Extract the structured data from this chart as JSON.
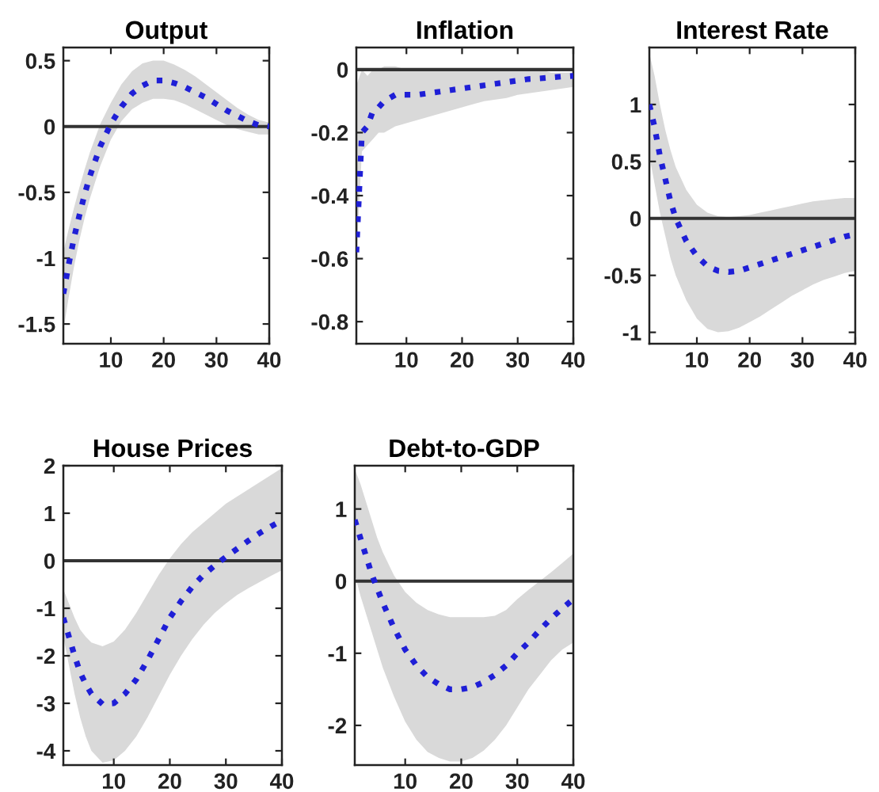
{
  "chart_data": [
    {
      "type": "line",
      "title": "Output",
      "x": [
        1,
        2,
        3,
        4,
        5,
        6,
        8,
        10,
        12,
        14,
        16,
        18,
        20,
        22,
        24,
        26,
        28,
        30,
        32,
        34,
        36,
        38,
        40
      ],
      "line_style": "dotted",
      "grid": false,
      "xlim": [
        1,
        40
      ],
      "xticks": [
        10,
        20,
        30,
        40
      ],
      "ylim": [
        -1.65,
        0.6
      ],
      "yticks": [
        -1.5,
        -1,
        -0.5,
        0,
        0.5
      ],
      "ref_lines": [
        {
          "axis": "y",
          "value": 0,
          "color": "#333333"
        }
      ],
      "series": [
        {
          "color": "#1f1fd6",
          "values": [
            -1.27,
            -1.05,
            -0.85,
            -0.68,
            -0.52,
            -0.38,
            -0.15,
            0.02,
            0.15,
            0.25,
            0.31,
            0.35,
            0.35,
            0.33,
            0.3,
            0.26,
            0.22,
            0.17,
            0.12,
            0.08,
            0.04,
            0.01,
            0.0
          ],
          "lower": [
            -1.55,
            -1.3,
            -1.07,
            -0.87,
            -0.7,
            -0.55,
            -0.3,
            -0.1,
            0.04,
            0.13,
            0.18,
            0.21,
            0.21,
            0.2,
            0.17,
            0.13,
            0.09,
            0.05,
            0.01,
            -0.02,
            -0.04,
            -0.06,
            -0.06
          ],
          "upper": [
            -0.95,
            -0.78,
            -0.62,
            -0.47,
            -0.33,
            -0.2,
            0.02,
            0.18,
            0.32,
            0.42,
            0.48,
            0.5,
            0.5,
            0.47,
            0.43,
            0.38,
            0.32,
            0.26,
            0.2,
            0.14,
            0.09,
            0.05,
            0.03
          ]
        }
      ]
    },
    {
      "type": "line",
      "title": "Inflation",
      "x": [
        1,
        2,
        3,
        4,
        5,
        6,
        8,
        10,
        12,
        14,
        16,
        18,
        20,
        22,
        24,
        26,
        28,
        30,
        32,
        34,
        36,
        38,
        40
      ],
      "line_style": "dotted",
      "grid": false,
      "xlim": [
        1,
        40
      ],
      "xticks": [
        10,
        20,
        30,
        40
      ],
      "ylim": [
        -0.87,
        0.07
      ],
      "yticks": [
        -0.8,
        -0.6,
        -0.4,
        -0.2,
        0
      ],
      "ref_lines": [
        {
          "axis": "y",
          "value": 0,
          "color": "#333333"
        }
      ],
      "series": [
        {
          "color": "#1f1fd6",
          "values": [
            -0.58,
            -0.2,
            -0.18,
            -0.13,
            -0.12,
            -0.1,
            -0.08,
            -0.08,
            -0.08,
            -0.075,
            -0.07,
            -0.065,
            -0.06,
            -0.055,
            -0.05,
            -0.045,
            -0.04,
            -0.035,
            -0.03,
            -0.028,
            -0.025,
            -0.022,
            -0.02
          ],
          "lower": [
            -0.6,
            -0.26,
            -0.24,
            -0.22,
            -0.2,
            -0.2,
            -0.18,
            -0.17,
            -0.16,
            -0.15,
            -0.14,
            -0.13,
            -0.12,
            -0.11,
            -0.1,
            -0.095,
            -0.09,
            -0.08,
            -0.075,
            -0.07,
            -0.065,
            -0.06,
            -0.055
          ],
          "upper": [
            -0.05,
            0.0,
            -0.02,
            0.0,
            0.0,
            0.01,
            0.01,
            0.0,
            0.0,
            0.0,
            0.0,
            0.0,
            0.0,
            0.0,
            0.0,
            0.0,
            0.0,
            0.0,
            0.0,
            0.0,
            -0.01,
            -0.01,
            -0.01
          ]
        }
      ]
    },
    {
      "type": "line",
      "title": "Interest Rate",
      "x": [
        1,
        2,
        3,
        4,
        5,
        6,
        8,
        10,
        12,
        14,
        16,
        18,
        20,
        22,
        24,
        26,
        28,
        30,
        32,
        34,
        36,
        38,
        40
      ],
      "line_style": "dotted",
      "grid": false,
      "xlim": [
        1,
        40
      ],
      "xticks": [
        10,
        20,
        30,
        40
      ],
      "ylim": [
        -1.1,
        1.5
      ],
      "yticks": [
        -1,
        -0.5,
        0,
        0.5,
        1
      ],
      "ref_lines": [
        {
          "axis": "y",
          "value": 0,
          "color": "#333333"
        }
      ],
      "series": [
        {
          "color": "#1f1fd6",
          "values": [
            1.0,
            0.8,
            0.55,
            0.35,
            0.15,
            0.0,
            -0.2,
            -0.33,
            -0.42,
            -0.46,
            -0.47,
            -0.46,
            -0.43,
            -0.4,
            -0.37,
            -0.34,
            -0.31,
            -0.28,
            -0.25,
            -0.22,
            -0.19,
            -0.16,
            -0.14
          ],
          "lower": [
            0.55,
            0.3,
            0.05,
            -0.15,
            -0.35,
            -0.5,
            -0.72,
            -0.88,
            -0.97,
            -1.0,
            -0.99,
            -0.96,
            -0.91,
            -0.86,
            -0.8,
            -0.74,
            -0.68,
            -0.63,
            -0.58,
            -0.54,
            -0.51,
            -0.48,
            -0.46
          ],
          "upper": [
            1.45,
            1.25,
            1.0,
            0.78,
            0.6,
            0.45,
            0.25,
            0.12,
            0.05,
            0.02,
            0.01,
            0.02,
            0.03,
            0.05,
            0.07,
            0.09,
            0.11,
            0.13,
            0.15,
            0.16,
            0.17,
            0.18,
            0.18
          ]
        }
      ]
    },
    {
      "type": "line",
      "title": "House Prices",
      "x": [
        1,
        2,
        3,
        4,
        5,
        6,
        8,
        10,
        12,
        14,
        16,
        18,
        20,
        22,
        24,
        26,
        28,
        30,
        32,
        34,
        36,
        38,
        40
      ],
      "line_style": "dotted",
      "grid": false,
      "xlim": [
        1,
        40
      ],
      "xticks": [
        10,
        20,
        30,
        40
      ],
      "ylim": [
        -4.3,
        2
      ],
      "yticks": [
        -4,
        -3,
        -2,
        -1,
        0,
        1,
        2
      ],
      "ref_lines": [
        {
          "axis": "y",
          "value": 0,
          "color": "#333333"
        }
      ],
      "series": [
        {
          "color": "#1f1fd6",
          "values": [
            -1.2,
            -1.6,
            -2.0,
            -2.35,
            -2.6,
            -2.8,
            -3.02,
            -3.0,
            -2.8,
            -2.5,
            -2.1,
            -1.65,
            -1.2,
            -0.85,
            -0.55,
            -0.3,
            -0.1,
            0.08,
            0.25,
            0.42,
            0.58,
            0.72,
            0.85
          ],
          "lower": [
            -1.6,
            -2.2,
            -2.8,
            -3.3,
            -3.7,
            -4.0,
            -4.25,
            -4.2,
            -4.0,
            -3.7,
            -3.3,
            -2.85,
            -2.4,
            -2.0,
            -1.65,
            -1.35,
            -1.1,
            -0.9,
            -0.72,
            -0.58,
            -0.45,
            -0.32,
            -0.2
          ],
          "upper": [
            -0.6,
            -0.9,
            -1.2,
            -1.45,
            -1.6,
            -1.72,
            -1.8,
            -1.7,
            -1.45,
            -1.1,
            -0.7,
            -0.3,
            0.05,
            0.35,
            0.6,
            0.8,
            1.0,
            1.2,
            1.35,
            1.5,
            1.65,
            1.8,
            1.95
          ]
        }
      ]
    },
    {
      "type": "line",
      "title": "Debt-to-GDP",
      "x": [
        1,
        2,
        3,
        4,
        5,
        6,
        8,
        10,
        12,
        14,
        16,
        18,
        20,
        22,
        24,
        26,
        28,
        30,
        32,
        34,
        36,
        38,
        40
      ],
      "line_style": "dotted",
      "grid": false,
      "xlim": [
        1,
        40
      ],
      "xticks": [
        10,
        20,
        30,
        40
      ],
      "ylim": [
        -2.55,
        1.6
      ],
      "yticks": [
        -2,
        -1,
        0,
        1
      ],
      "ref_lines": [
        {
          "axis": "y",
          "value": 0,
          "color": "#333333"
        }
      ],
      "series": [
        {
          "color": "#1f1fd6",
          "values": [
            0.85,
            0.6,
            0.35,
            0.1,
            -0.1,
            -0.3,
            -0.65,
            -0.95,
            -1.17,
            -1.33,
            -1.43,
            -1.5,
            -1.5,
            -1.47,
            -1.4,
            -1.3,
            -1.17,
            -1.0,
            -0.85,
            -0.68,
            -0.52,
            -0.38,
            -0.25
          ],
          "lower": [
            0.1,
            -0.2,
            -0.45,
            -0.7,
            -0.95,
            -1.2,
            -1.6,
            -1.95,
            -2.2,
            -2.37,
            -2.45,
            -2.5,
            -2.5,
            -2.45,
            -2.35,
            -2.2,
            -2.0,
            -1.75,
            -1.5,
            -1.3,
            -1.1,
            -0.95,
            -0.85
          ],
          "upper": [
            1.55,
            1.35,
            1.1,
            0.85,
            0.6,
            0.4,
            0.08,
            -0.15,
            -0.3,
            -0.4,
            -0.46,
            -0.5,
            -0.5,
            -0.5,
            -0.5,
            -0.48,
            -0.4,
            -0.25,
            -0.12,
            0.0,
            0.12,
            0.25,
            0.38
          ]
        }
      ]
    }
  ]
}
